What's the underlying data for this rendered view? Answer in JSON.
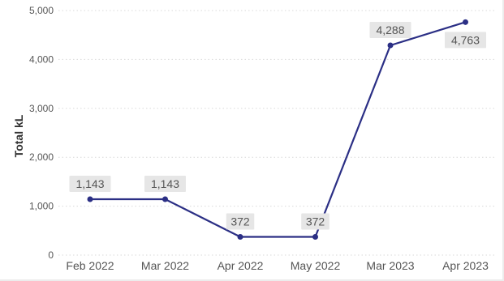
{
  "chart_data": {
    "type": "line",
    "title": "",
    "xlabel": "",
    "ylabel": "Total kL",
    "categories": [
      "Feb 2022",
      "Mar 2022",
      "Apr 2022",
      "May 2022",
      "Mar 2023",
      "Apr 2023"
    ],
    "series": [
      {
        "values": [
          1143,
          1143,
          372,
          372,
          4288,
          4763
        ],
        "data_labels": [
          "1,143",
          "1,143",
          "372",
          "372",
          "4,288",
          "4,763"
        ],
        "color": "#2b2f85"
      }
    ],
    "ylim": [
      0,
      5000
    ],
    "yticks": [
      0,
      1000,
      2000,
      3000,
      4000,
      5000
    ],
    "ytick_labels": [
      "0",
      "1,000",
      "2,000",
      "3,000",
      "4,000",
      "5,000"
    ],
    "grid": true,
    "legend": "none",
    "colors": {
      "line": "#2b2f85",
      "grid": "#d9d9d9",
      "label_background": "#e6e6e6",
      "text": "#555555"
    }
  }
}
